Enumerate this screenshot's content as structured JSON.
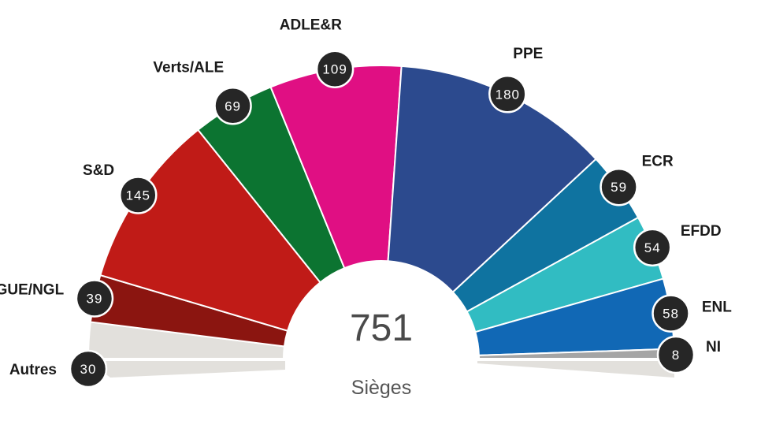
{
  "chart_data": {
    "type": "parliament",
    "total": "751",
    "total_label": "Sièges",
    "shadow_color": "#e2e0dc",
    "bubble_color": "#262626",
    "parties": [
      {
        "name": "Autres",
        "value": 30,
        "color": "#e2e0dc"
      },
      {
        "name": "GUE/NGL",
        "value": 39,
        "color": "#8b1510"
      },
      {
        "name": "S&D",
        "value": 145,
        "color": "#c01b17"
      },
      {
        "name": "Verts/ALE",
        "value": 69,
        "color": "#0c7431"
      },
      {
        "name": "ADLE&R",
        "value": 109,
        "color": "#e00f83"
      },
      {
        "name": "PPE",
        "value": 180,
        "color": "#2c4a8e"
      },
      {
        "name": "ECR",
        "value": 59,
        "color": "#0f73a0"
      },
      {
        "name": "EFDD",
        "value": 54,
        "color": "#31bcc2"
      },
      {
        "name": "ENL",
        "value": 58,
        "color": "#1168b5"
      },
      {
        "name": "NI",
        "value": 8,
        "color": "#a5a5a5"
      }
    ]
  }
}
